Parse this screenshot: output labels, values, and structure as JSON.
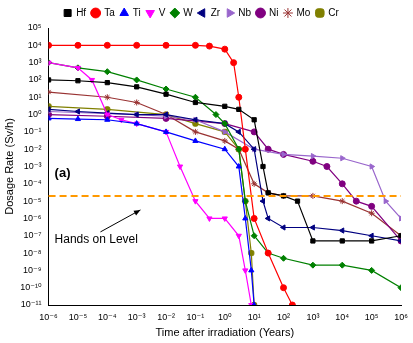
{
  "chart_data": {
    "type": "line",
    "x_label": "Time after irradiation (Years)",
    "y_label": "Dosage Rate (Sv/h)",
    "panel_label": "(a)",
    "log": true,
    "grid": false,
    "legend": "top",
    "xlim": [
      1e-06,
      1000000.0
    ],
    "ylim": [
      1e-11,
      100000.0
    ],
    "xticks": [
      {
        "value": 1e-06,
        "label": "10⁻⁶"
      },
      {
        "value": 1e-05,
        "label": "10⁻⁵"
      },
      {
        "value": 0.0001,
        "label": "10⁻⁴"
      },
      {
        "value": 0.001,
        "label": "10⁻³"
      },
      {
        "value": 0.01,
        "label": "10⁻²"
      },
      {
        "value": 0.1,
        "label": "10⁻¹"
      },
      {
        "value": 1,
        "label": "10⁰"
      },
      {
        "value": 10,
        "label": "10¹"
      },
      {
        "value": 100,
        "label": "10²"
      },
      {
        "value": 1000,
        "label": "10³"
      },
      {
        "value": 10000,
        "label": "10⁴"
      },
      {
        "value": 100000,
        "label": "10⁵"
      },
      {
        "value": 1000000,
        "label": "10⁶"
      }
    ],
    "yticks": [
      {
        "value": 1e-11,
        "label": "10⁻¹¹"
      },
      {
        "value": 1e-10,
        "label": "10⁻¹⁰"
      },
      {
        "value": 1e-09,
        "label": "10⁻⁹"
      },
      {
        "value": 1e-08,
        "label": "10⁻⁸"
      },
      {
        "value": 1e-07,
        "label": "10⁻⁷"
      },
      {
        "value": 1e-06,
        "label": "10⁻⁶"
      },
      {
        "value": 1e-05,
        "label": "10⁻⁵"
      },
      {
        "value": 0.0001,
        "label": "10⁻⁴"
      },
      {
        "value": 0.001,
        "label": "10⁻³"
      },
      {
        "value": 0.01,
        "label": "10⁻²"
      },
      {
        "value": 0.1,
        "label": "10⁻¹"
      },
      {
        "value": 1,
        "label": "10⁰"
      },
      {
        "value": 10,
        "label": "10¹"
      },
      {
        "value": 100,
        "label": "10²"
      },
      {
        "value": 1000,
        "label": "10³"
      },
      {
        "value": 10000,
        "label": "10⁴"
      },
      {
        "value": 100000,
        "label": "10⁵"
      }
    ],
    "reference_line": {
      "label": "Hands on Level",
      "value": 2e-05,
      "color": "#ff9900",
      "line_style": "dashed"
    },
    "series": [
      {
        "name": "Hf",
        "color": "#000000",
        "marker": "square",
        "x": [
          1e-06,
          1e-05,
          0.0001,
          0.001,
          0.01,
          0.1,
          1,
          3,
          10,
          20,
          30,
          100,
          300,
          1000,
          10000,
          100000,
          1000000
        ],
        "values": [
          100,
          90,
          70,
          40,
          15,
          5,
          3,
          2,
          0.5,
          0.001,
          3e-05,
          2e-05,
          1e-05,
          5e-08,
          5e-08,
          5e-08,
          1e-07
        ]
      },
      {
        "name": "Ta",
        "color": "#ff0000",
        "marker": "circle",
        "x": [
          1e-06,
          1e-05,
          0.0001,
          0.001,
          0.01,
          0.1,
          0.3,
          1,
          2,
          3,
          5,
          10,
          30,
          100,
          200
        ],
        "values": [
          10000,
          10000,
          10000,
          10000,
          10000,
          10000,
          9000,
          6000,
          1000,
          10,
          0.01,
          1e-06,
          1e-08,
          1e-10,
          1e-11
        ]
      },
      {
        "name": "Ti",
        "color": "#0000ff",
        "marker": "triangle-up",
        "x": [
          1e-06,
          1e-05,
          0.0001,
          0.001,
          0.01,
          0.1,
          1,
          3,
          5,
          8,
          10
        ],
        "values": [
          0.6,
          0.55,
          0.5,
          0.3,
          0.1,
          0.03,
          0.01,
          0.001,
          1e-06,
          1e-09,
          1e-11
        ]
      },
      {
        "name": "V",
        "color": "#ff00ff",
        "marker": "triangle-down",
        "x": [
          1e-06,
          1e-05,
          3e-05,
          0.0001,
          0.0003,
          0.001,
          0.01,
          0.03,
          0.1,
          0.3,
          1,
          3,
          5,
          8
        ],
        "values": [
          1000,
          500,
          100,
          1,
          0.5,
          0.3,
          0.1,
          0.001,
          1e-05,
          1e-06,
          1e-06,
          1e-07,
          1e-09,
          1e-11
        ]
      },
      {
        "name": "W",
        "color": "#008000",
        "marker": "diamond",
        "x": [
          1e-06,
          1e-05,
          0.0001,
          0.001,
          0.01,
          0.1,
          0.5,
          1,
          3,
          5,
          10,
          30,
          100,
          1000,
          10000,
          100000,
          1000000
        ],
        "values": [
          1000,
          500,
          300,
          100,
          30,
          10,
          1,
          0.3,
          0.01,
          1e-05,
          1e-07,
          1e-08,
          5e-09,
          2e-09,
          2e-09,
          1e-09,
          1e-10
        ]
      },
      {
        "name": "Zr",
        "color": "#000080",
        "marker": "triangle-left",
        "x": [
          1e-06,
          1e-05,
          0.0001,
          0.001,
          0.01,
          0.1,
          1,
          3,
          10,
          20,
          30,
          100,
          1000,
          10000,
          100000,
          1000000
        ],
        "values": [
          2,
          1.5,
          1.2,
          1,
          1,
          0.5,
          0.3,
          0.1,
          0.01,
          1e-05,
          1e-06,
          3e-07,
          3e-07,
          2e-07,
          1e-07,
          5e-08
        ]
      },
      {
        "name": "Nb",
        "color": "#9966cc",
        "marker": "triangle-right",
        "x": [
          1e-06,
          0.001,
          0.01,
          0.1,
          1,
          10,
          100,
          1000,
          10000,
          100000,
          300000,
          1000000
        ],
        "values": [
          1.5,
          1,
          0.8,
          0.5,
          0.1,
          0.01,
          0.005,
          0.004,
          0.003,
          0.001,
          1e-05,
          1e-06
        ]
      },
      {
        "name": "Ni",
        "color": "#800080",
        "marker": "circle",
        "x": [
          1e-06,
          0.0001,
          0.01,
          1,
          10,
          30,
          100,
          1000,
          3000,
          10000,
          30000,
          100000,
          1000000
        ],
        "values": [
          1,
          0.8,
          0.6,
          0.3,
          0.1,
          0.01,
          0.005,
          0.002,
          0.001,
          0.0001,
          1e-05,
          5e-06,
          5e-08
        ]
      },
      {
        "name": "Mo",
        "color": "#993333",
        "marker": "star",
        "x": [
          1e-06,
          0.0001,
          0.001,
          0.01,
          0.1,
          1,
          3,
          10,
          30,
          100,
          1000,
          10000,
          100000,
          1000000
        ],
        "values": [
          20,
          10,
          5,
          1,
          0.1,
          0.03,
          0.01,
          0.0001,
          3e-05,
          2e-05,
          2e-05,
          1e-05,
          2e-06,
          1e-07
        ]
      },
      {
        "name": "Cr",
        "color": "#808000",
        "marker": "pentagon",
        "x": [
          1e-06,
          0.0001,
          0.01,
          0.1,
          1,
          3,
          5,
          8,
          10
        ],
        "values": [
          3,
          2,
          1,
          0.3,
          0.1,
          0.01,
          1e-05,
          1e-08,
          1e-11
        ]
      }
    ]
  }
}
